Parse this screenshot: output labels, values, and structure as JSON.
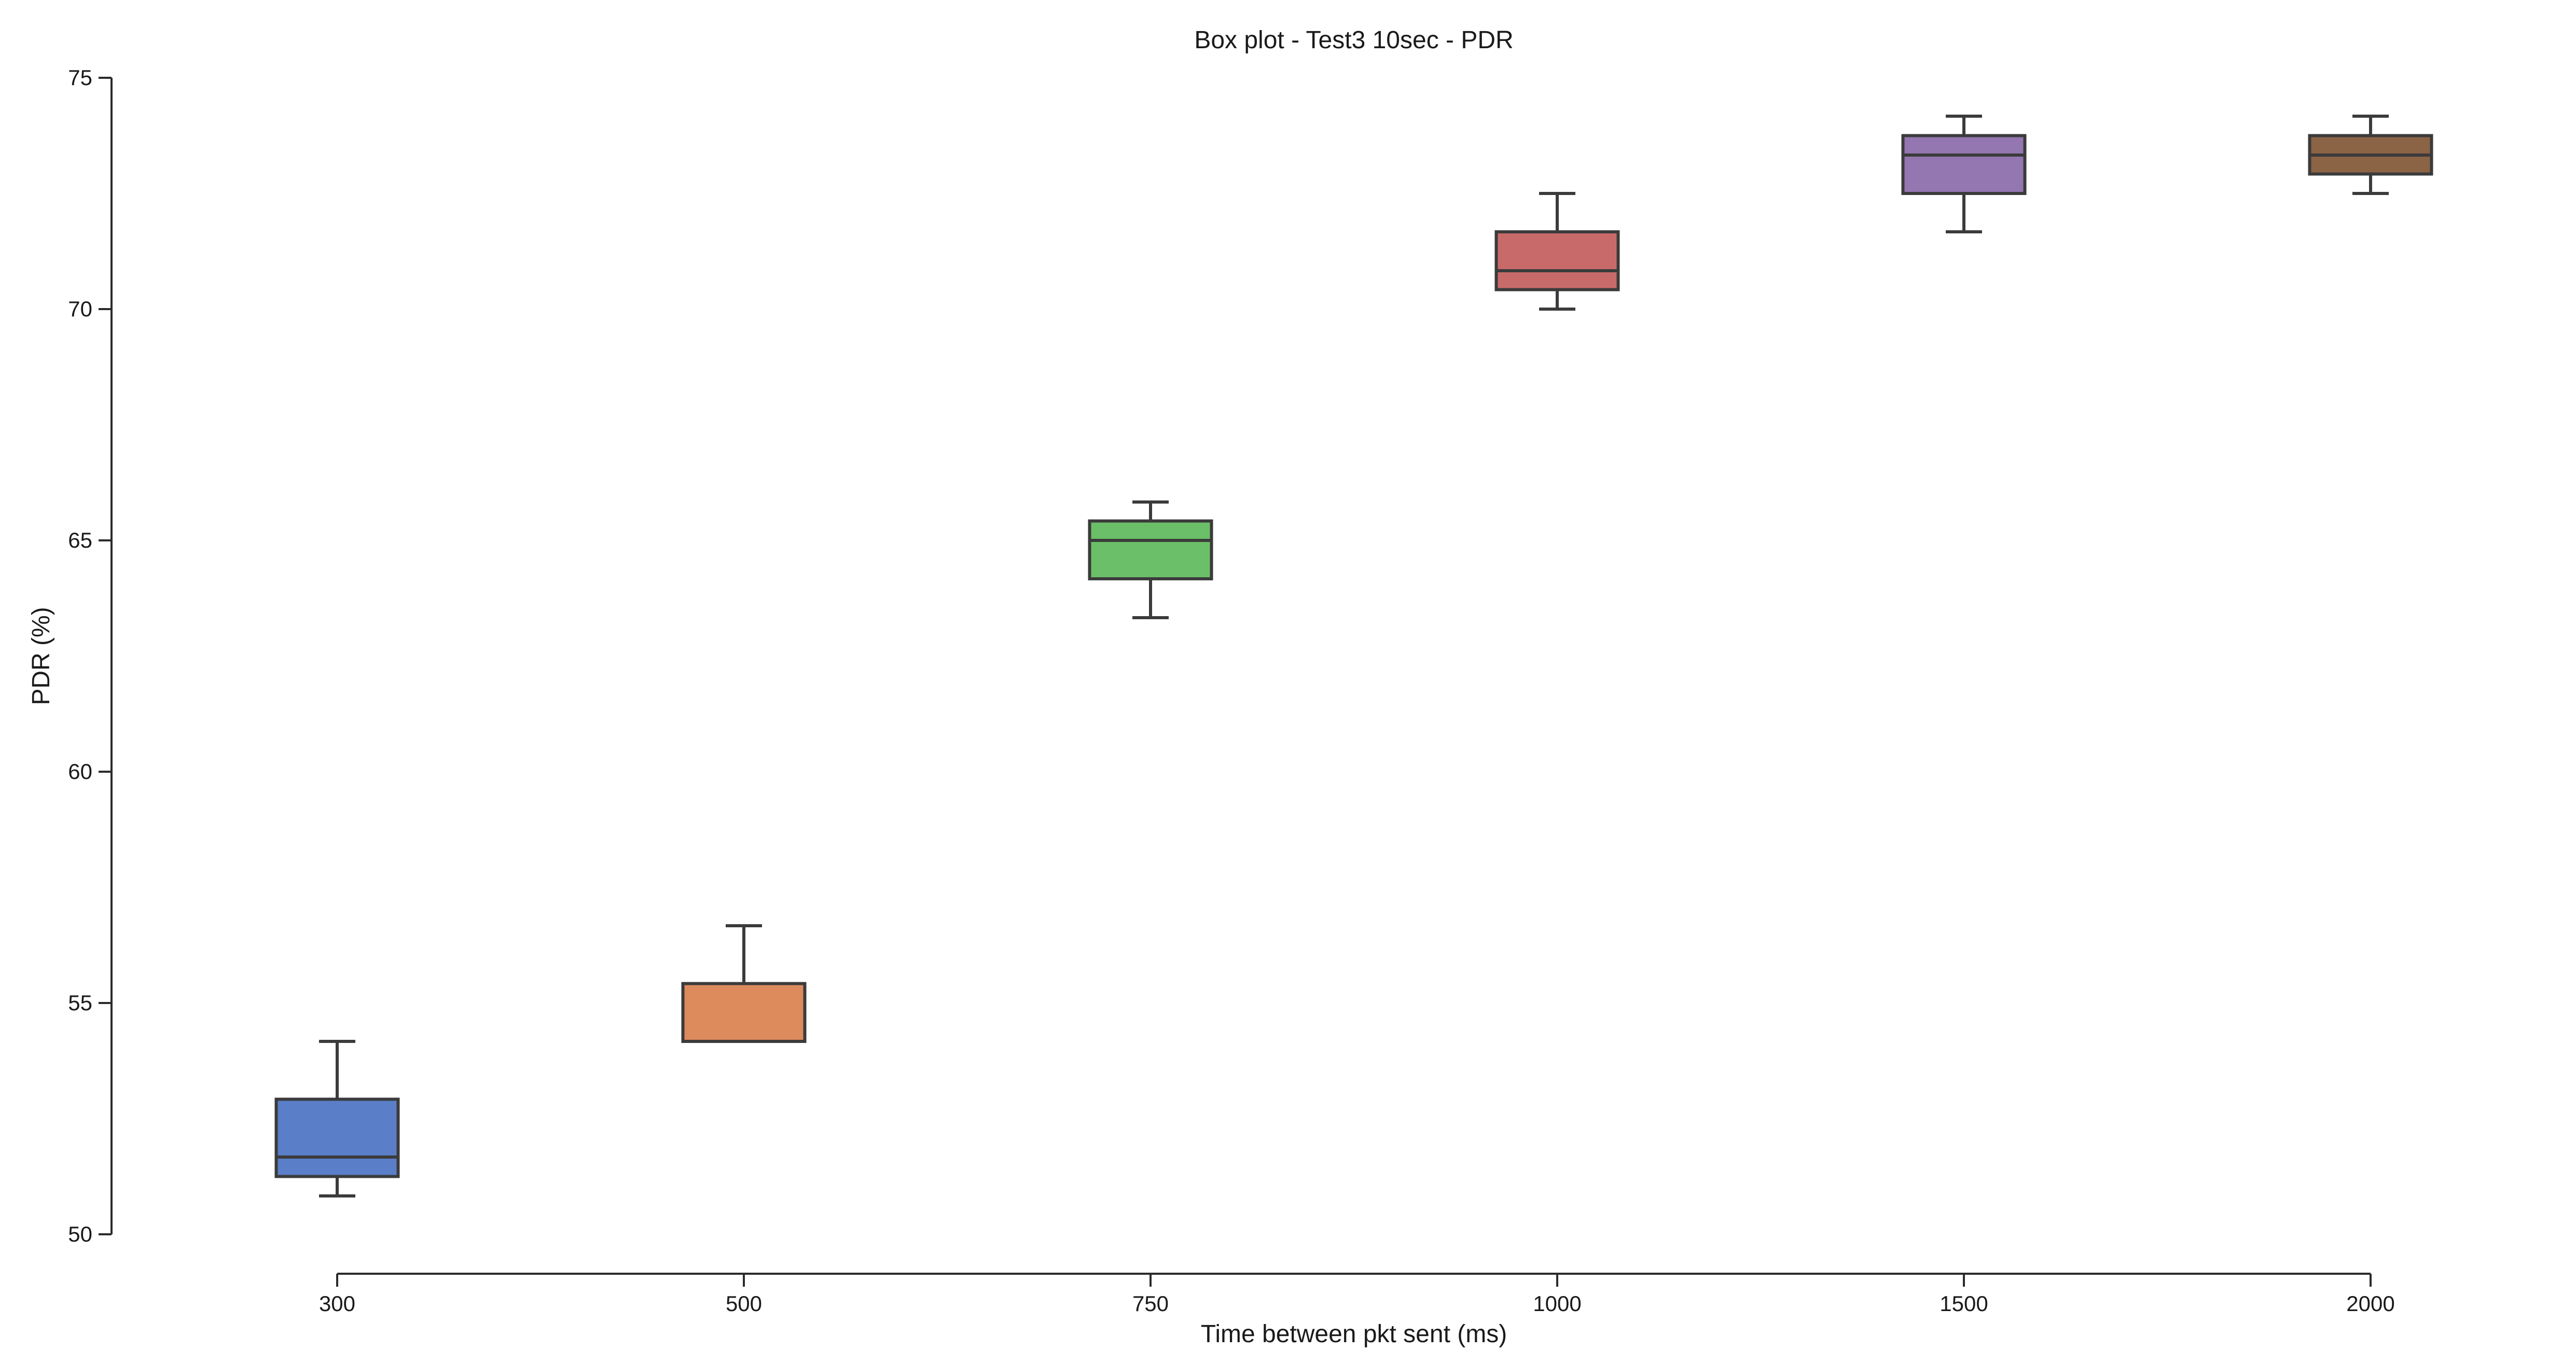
{
  "chart_data": {
    "type": "box",
    "title": "Box plot - Test3 10sec - PDR",
    "xlabel": "Time between pkt sent (ms)",
    "ylabel": "PDR (%)",
    "ylim": [
      50,
      75
    ],
    "yticks": [
      50,
      55,
      60,
      65,
      70,
      75
    ],
    "grid": false,
    "legend": "none",
    "categories": [
      "300",
      "500",
      "750",
      "1000",
      "1500",
      "2000"
    ],
    "boxes": [
      {
        "category": "300",
        "whislo": 50.83,
        "q1": 51.25,
        "median": 51.67,
        "q3": 52.92,
        "whishi": 54.17,
        "color": "#5a7ec7"
      },
      {
        "category": "500",
        "whislo": 54.17,
        "q1": 54.17,
        "median": 54.17,
        "q3": 55.42,
        "whishi": 56.67,
        "color": "#dd8a5c"
      },
      {
        "category": "750",
        "whislo": 63.33,
        "q1": 64.17,
        "median": 65.0,
        "q3": 65.42,
        "whishi": 65.83,
        "color": "#6bbf68"
      },
      {
        "category": "1000",
        "whislo": 70.0,
        "q1": 70.42,
        "median": 70.83,
        "q3": 71.67,
        "whishi": 72.5,
        "color": "#c96a6a"
      },
      {
        "category": "1500",
        "whislo": 71.67,
        "q1": 72.5,
        "median": 73.33,
        "q3": 73.75,
        "whishi": 74.17,
        "color": "#9476b1"
      },
      {
        "category": "2000",
        "whislo": 72.5,
        "q1": 72.92,
        "median": 73.33,
        "q3": 73.75,
        "whishi": 74.17,
        "color": "#8b6345"
      }
    ]
  }
}
